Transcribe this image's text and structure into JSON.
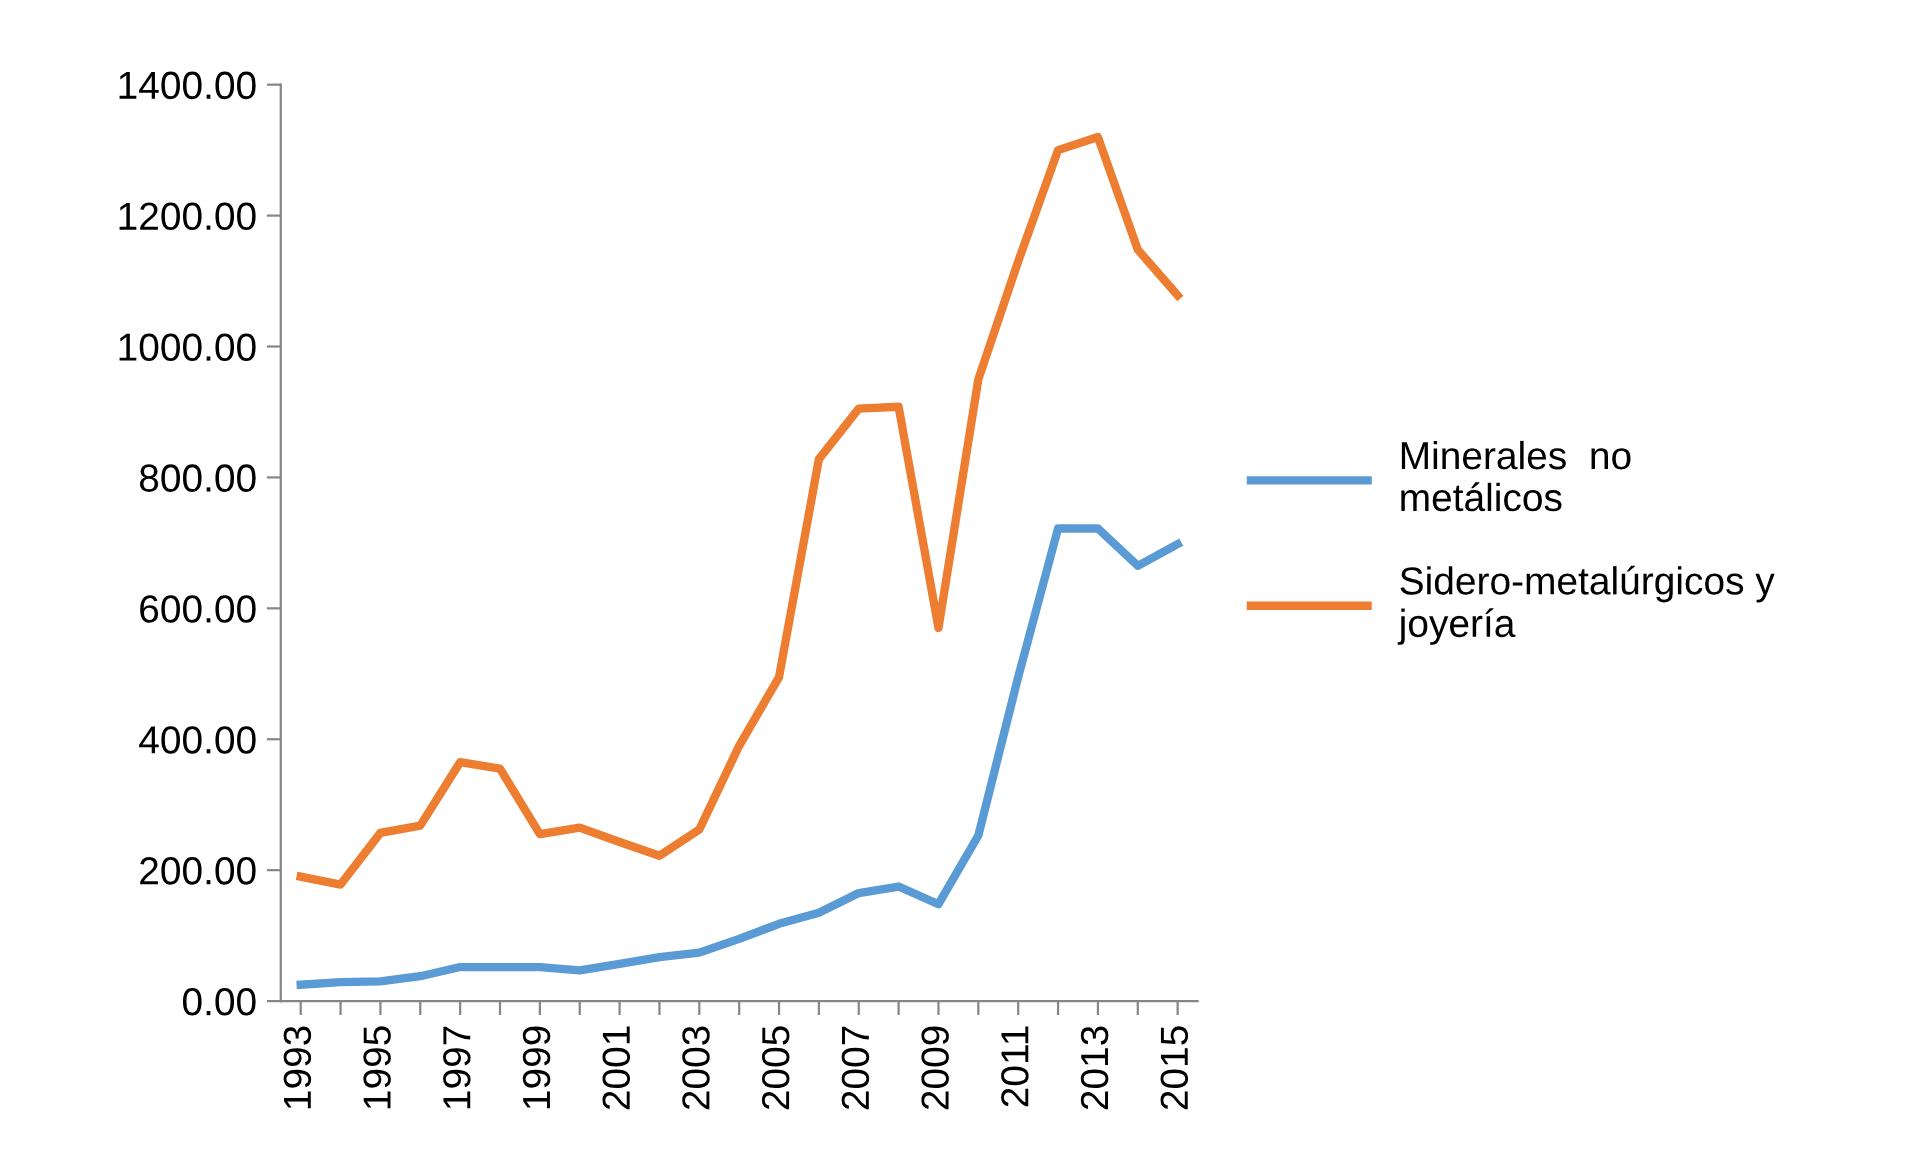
{
  "chart_data": {
    "type": "line",
    "x": [
      1993,
      1994,
      1995,
      1996,
      1997,
      1998,
      1999,
      2000,
      2001,
      2002,
      2003,
      2004,
      2005,
      2006,
      2007,
      2008,
      2009,
      2010,
      2011,
      2012,
      2013,
      2014,
      2015
    ],
    "series": [
      {
        "name": "Minerales  no metálicos",
        "color": "#5b9bd5",
        "values": [
          25,
          29,
          30,
          38,
          52,
          52,
          52,
          47,
          57,
          67,
          74,
          95,
          118,
          135,
          165,
          175,
          148,
          253,
          495,
          722,
          722,
          665,
          698
        ]
      },
      {
        "name": "Sidero-metalúrgicos y joyería",
        "color": "#ed7d31",
        "values": [
          190,
          178,
          257,
          268,
          365,
          355,
          255,
          265,
          243,
          222,
          262,
          390,
          495,
          828,
          905,
          908,
          570,
          950,
          1130,
          1300,
          1320,
          1148,
          1078
        ]
      }
    ],
    "xlim": [
      1992.5,
      2015.5
    ],
    "xticks": [
      1993,
      {
        "value": 1994,
        "label": null
      },
      1995,
      {
        "value": 1996,
        "label": null
      },
      1997,
      {
        "value": 1998,
        "label": null
      },
      1999,
      {
        "value": 2000,
        "label": null
      },
      2001,
      {
        "value": 2002,
        "label": null
      },
      2003,
      {
        "value": 2004,
        "label": null
      },
      2005,
      {
        "value": 2006,
        "label": null
      },
      2007,
      {
        "value": 2008,
        "label": null
      },
      2009,
      {
        "value": 2010,
        "label": null
      },
      2011,
      {
        "value": 2012,
        "label": null
      },
      2013,
      {
        "value": 2014,
        "label": null
      },
      2015
    ],
    "ylim": [
      0,
      1400
    ],
    "yticks": [
      {
        "value": 0,
        "label": "0.00"
      },
      {
        "value": 200,
        "label": "200.00"
      },
      {
        "value": 400,
        "label": "400.00"
      },
      {
        "value": 600,
        "label": "600.00"
      },
      {
        "value": 800,
        "label": "800.00"
      },
      {
        "value": 1000,
        "label": "1000.00"
      },
      {
        "value": 1200,
        "label": "1200.00"
      },
      {
        "value": 1400,
        "label": "1400.00"
      }
    ],
    "grid": false,
    "legend": "right",
    "marker": "none",
    "line_style": "solid"
  }
}
